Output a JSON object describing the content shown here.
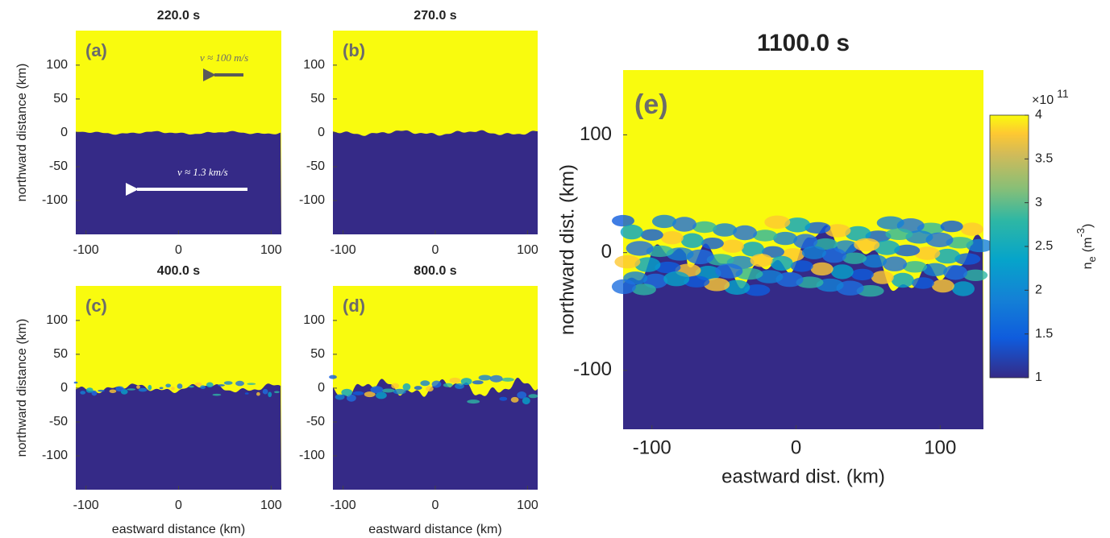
{
  "chart_data": [
    {
      "type": "heatmap",
      "title": "220.0 s",
      "panel_label": "(a)",
      "ylabel": "northward distance (km)",
      "xlim": [
        -111,
        111
      ],
      "ylim": [
        -150,
        151
      ],
      "xticks": [
        -100,
        0,
        100
      ],
      "yticks": [
        -100,
        -50,
        0,
        50,
        100
      ],
      "annotations": [
        "v ≈ 100 m/s",
        "v ≈ 1.3 km/s"
      ]
    },
    {
      "type": "heatmap",
      "title": "270.0 s",
      "panel_label": "(b)",
      "xlim": [
        -111,
        111
      ],
      "ylim": [
        -150,
        151
      ],
      "xticks": [
        -100,
        0,
        100
      ],
      "yticks": [
        -100,
        -50,
        0,
        50,
        100
      ]
    },
    {
      "type": "heatmap",
      "title": "400.0 s",
      "panel_label": "(c)",
      "ylabel": "northward distance (km)",
      "xlabel": "eastward distance (km)",
      "xlim": [
        -111,
        111
      ],
      "ylim": [
        -150,
        151
      ],
      "xticks": [
        -100,
        0,
        100
      ],
      "yticks": [
        -100,
        -50,
        0,
        50,
        100
      ]
    },
    {
      "type": "heatmap",
      "title": "800.0 s",
      "panel_label": "(d)",
      "xlabel": "eastward distance (km)",
      "xlim": [
        -111,
        111
      ],
      "ylim": [
        -150,
        151
      ],
      "xticks": [
        -100,
        0,
        100
      ],
      "yticks": [
        -100,
        -50,
        0,
        50,
        100
      ]
    },
    {
      "type": "heatmap",
      "title": "1100.0 s",
      "panel_label": "(e)",
      "ylabel": "northward dist. (km)",
      "xlabel": "eastward dist. (km)",
      "xlim": [
        -120,
        130
      ],
      "ylim": [
        -150,
        155
      ],
      "xticks": [
        -100,
        0,
        100
      ],
      "yticks": [
        -100,
        0,
        100
      ],
      "colorbar": {
        "clim": [
          1,
          4
        ],
        "ticks": [
          1,
          1.5,
          2,
          2.5,
          3,
          3.5,
          4
        ],
        "label": {
          "symbol": "n",
          "subscript": "e",
          "unit": "(m",
          "exponent": "-3",
          "unit_end": ")"
        },
        "multiplier": {
          "base": "×10",
          "exponent": "11"
        }
      }
    }
  ]
}
